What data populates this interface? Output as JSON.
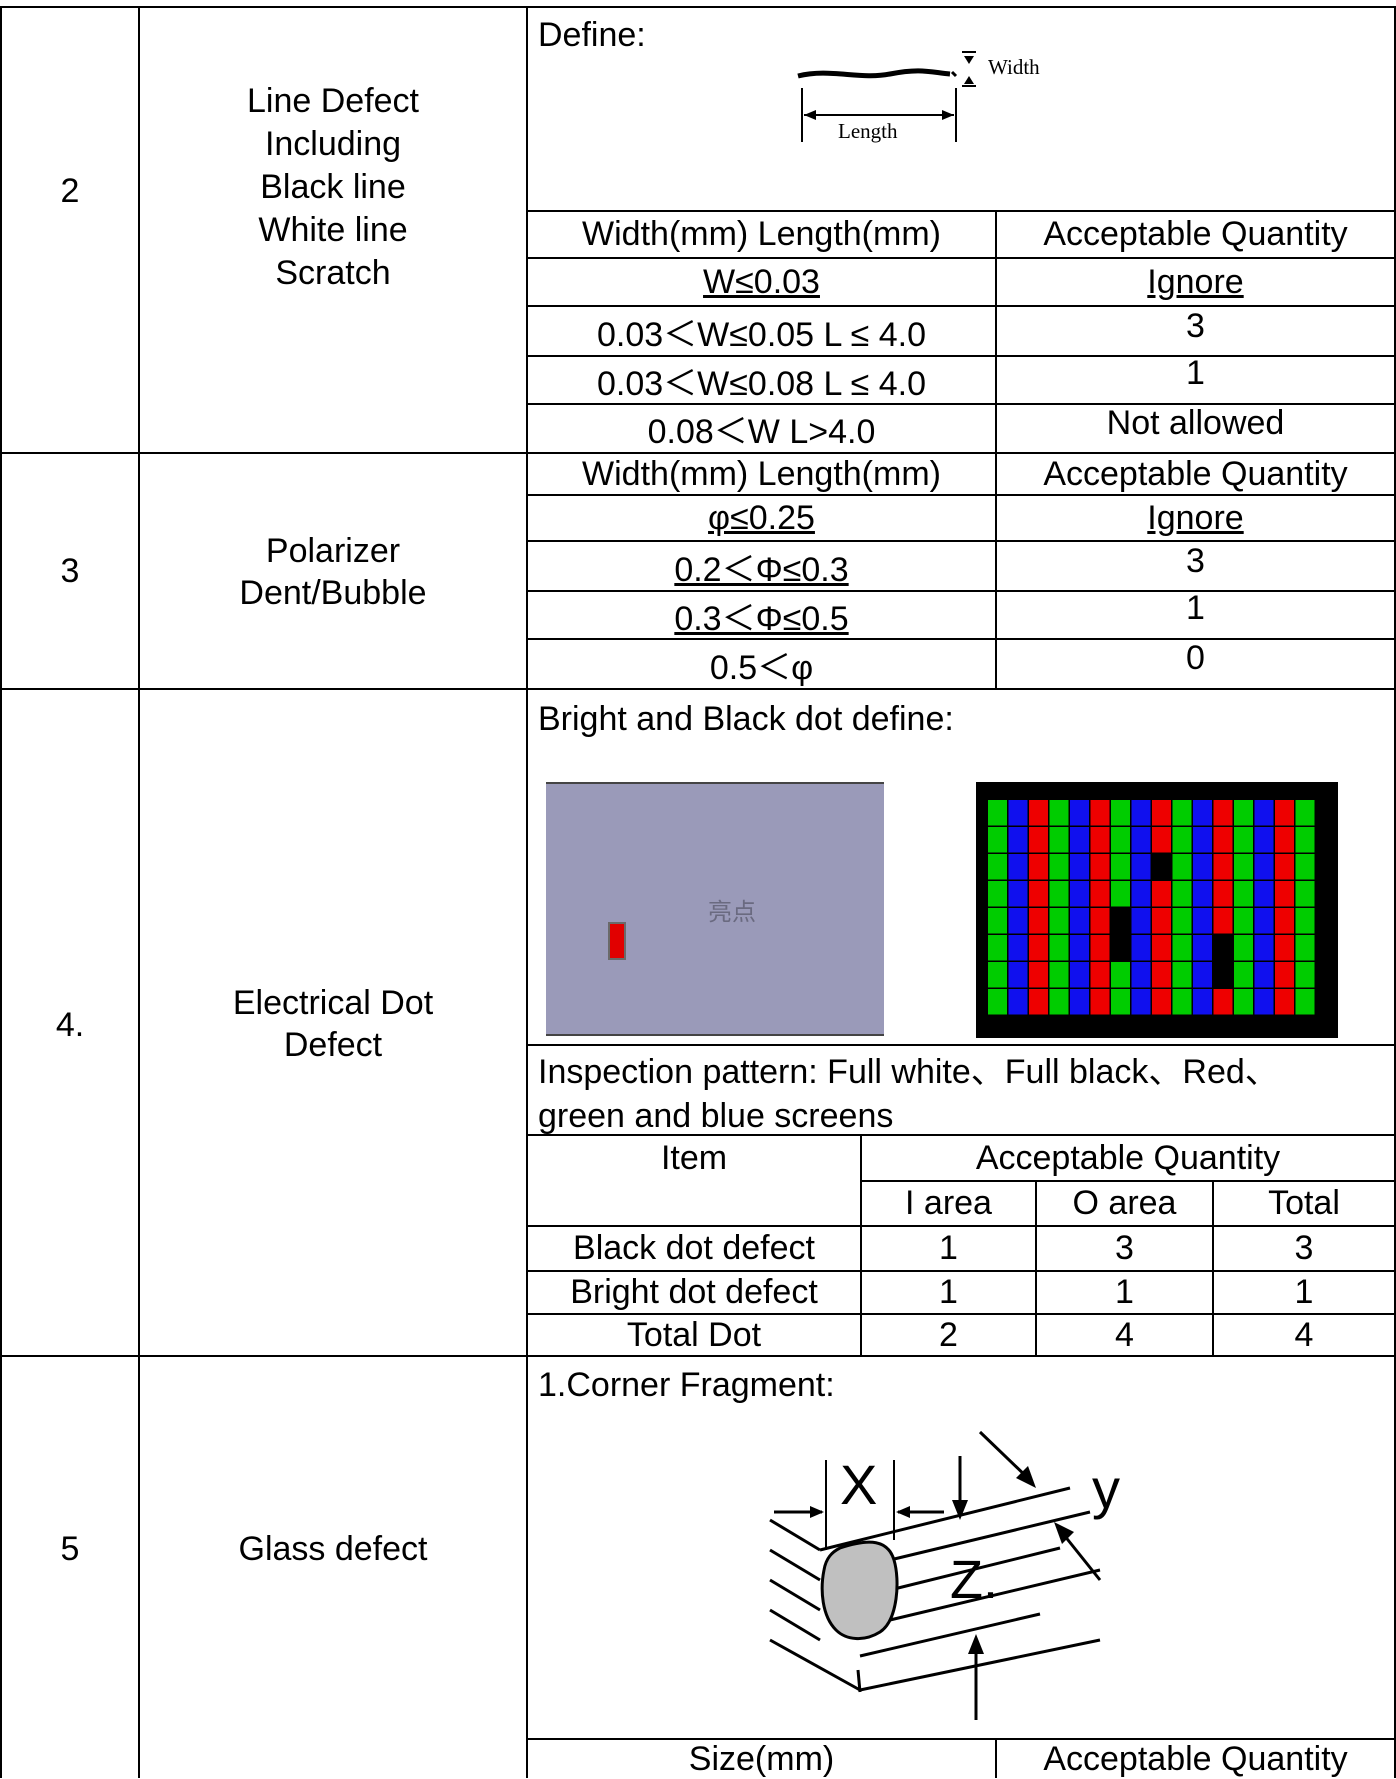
{
  "rows": {
    "r2": {
      "no": "2",
      "item_lines": [
        "Line Defect",
        "Including",
        "Black line",
        "White line",
        "Scratch"
      ],
      "define_label": "Define:",
      "figure_labels": {
        "width": "Width",
        "length": "Length"
      },
      "header": {
        "col1": "Width(mm) Length(mm)",
        "col2": "Acceptable Quantity"
      },
      "table": [
        [
          "W≤0.03",
          "Ignore"
        ],
        [
          "0.03＜W≤0.05 L ≤ 4.0",
          "3"
        ],
        [
          "0.03＜W≤0.08 L ≤ 4.0",
          "1"
        ],
        [
          "0.08＜W L>4.0",
          "Not allowed"
        ]
      ]
    },
    "r3": {
      "no": "3",
      "item_lines": [
        "Polarizer",
        "Dent/Bubble"
      ],
      "header": {
        "col1": "Width(mm) Length(mm)",
        "col2": "Acceptable Quantity"
      },
      "table": [
        [
          "φ≤0.25",
          "Ignore"
        ],
        [
          "0.2＜Φ≤0.3",
          "3"
        ],
        [
          "0.3＜Φ≤0.5",
          "1"
        ],
        [
          "0.5＜φ",
          "0"
        ]
      ]
    },
    "r4": {
      "no": "4.",
      "item_lines": [
        "Electrical Dot",
        "Defect"
      ],
      "define_label": "Bright and Black dot define:",
      "figure_text": "亮点",
      "pattern_lines": [
        "Inspection pattern: Full white、Full black、Red、",
        "green and blue screens"
      ],
      "header": {
        "item": "Item",
        "acceptable": "Acceptable Quantity",
        "i_area": "I area",
        "o_area": "O area",
        "total": "Total"
      },
      "table": [
        [
          "Black dot defect",
          "1",
          "3",
          "3"
        ],
        [
          "Bright dot defect",
          "1",
          "1",
          "1"
        ],
        [
          "Total Dot",
          "2",
          "4",
          "4"
        ]
      ]
    },
    "r5": {
      "no": "5",
      "item_lines": [
        "Glass defect"
      ],
      "corner_label": "1.Corner Fragment:",
      "figure_labels": {
        "x": "X",
        "y": "y",
        "z": "Z."
      },
      "header": {
        "col1": "Size(mm)",
        "col2": "Acceptable Quantity"
      }
    }
  },
  "colors": {
    "panel_bg": "#9a9ab9",
    "bright_dot": "#e10000",
    "green": "#00cc00",
    "blue": "#1010ee",
    "red": "#ee0000"
  }
}
